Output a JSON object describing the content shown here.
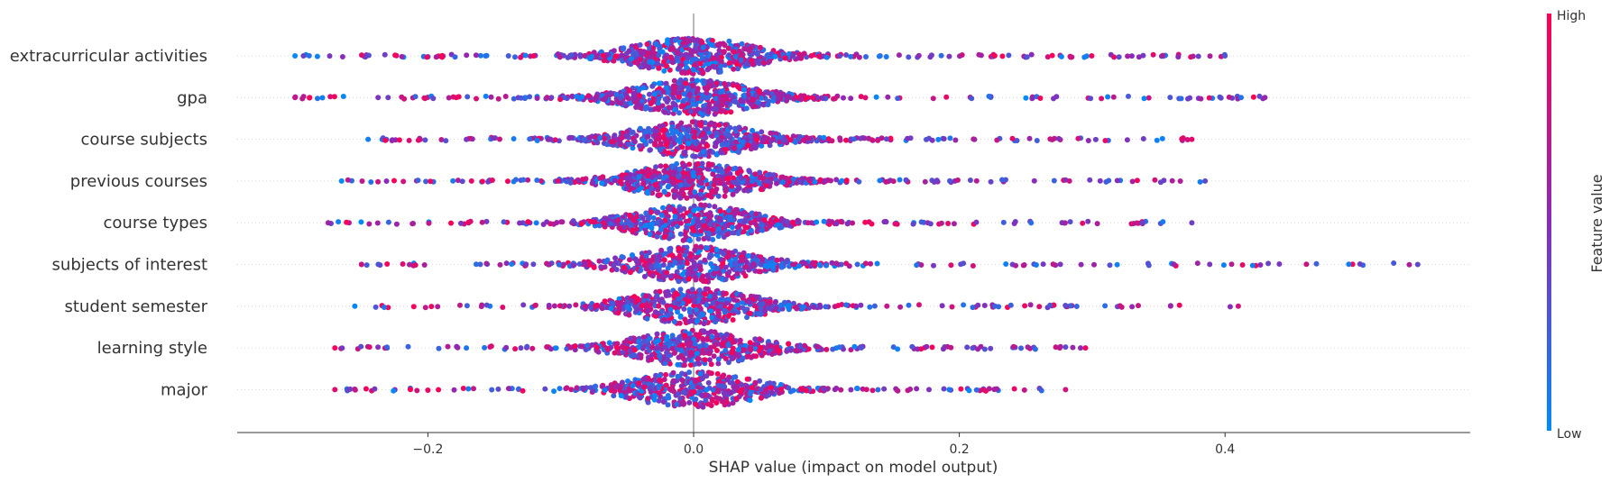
{
  "chart_data": {
    "type": "scatter",
    "subtype": "shap-beeswarm",
    "xlabel": "SHAP value (impact on model output)",
    "xticks": [
      -0.2,
      0.0,
      0.2,
      0.4
    ],
    "xtick_labels": [
      "−0.2",
      "0.0",
      "0.2",
      "0.4"
    ],
    "xlim": [
      -0.345,
      0.585
    ],
    "zero_line": 0.0,
    "grid": "faint dotted row guides",
    "features": [
      {
        "name": "extracurricular activities",
        "min": -0.3,
        "max": 0.4,
        "spread": 0.45,
        "density": 1.0
      },
      {
        "name": "gpa",
        "min": -0.3,
        "max": 0.43,
        "spread": 0.45,
        "density": 1.0
      },
      {
        "name": "course subjects",
        "min": -0.245,
        "max": 0.375,
        "spread": 0.45,
        "density": 0.95
      },
      {
        "name": "previous courses",
        "min": -0.265,
        "max": 0.385,
        "spread": 0.4,
        "density": 0.9
      },
      {
        "name": "course types",
        "min": -0.275,
        "max": 0.375,
        "spread": 0.42,
        "density": 0.9
      },
      {
        "name": "subjects of interest",
        "min": -0.25,
        "max": 0.545,
        "spread": 0.38,
        "density": 0.85
      },
      {
        "name": "student semester",
        "min": -0.255,
        "max": 0.41,
        "spread": 0.38,
        "density": 0.85
      },
      {
        "name": "learning style",
        "min": -0.27,
        "max": 0.295,
        "spread": 0.35,
        "density": 0.8
      },
      {
        "name": "major",
        "min": -0.27,
        "max": 0.28,
        "spread": 0.33,
        "density": 0.75
      }
    ],
    "colorbar": {
      "title": "Feature value",
      "high_label": "High",
      "low_label": "Low",
      "high_color": "#ff0052",
      "mid_color": "#8a2bb8",
      "low_color": "#008bfb"
    }
  }
}
